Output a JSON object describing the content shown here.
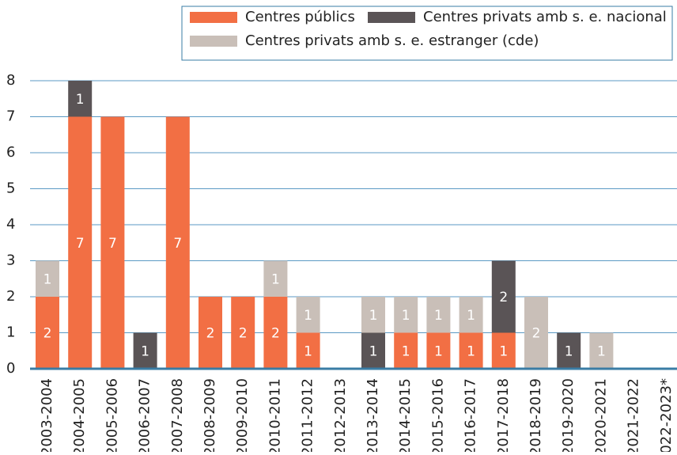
{
  "chart_data": {
    "type": "stacked-bar",
    "categories": [
      "2003-2004",
      "2004-2005",
      "2005-2006",
      "2006-2007",
      "2007-2008",
      "2008-2009",
      "2009-2010",
      "2010-2011",
      "2011-2012",
      "2012-2013",
      "2013-2014",
      "2014-2015",
      "2015-2016",
      "2016-2017",
      "2017-2018",
      "2018-2019",
      "2019-2020",
      "2020-2021",
      "2021-2022",
      "2022-2023*"
    ],
    "series": [
      {
        "name": "Centres públics",
        "color": "#f26f44",
        "values": [
          2,
          7,
          7,
          0,
          7,
          2,
          2,
          2,
          1,
          0,
          0,
          1,
          1,
          1,
          1,
          0,
          0,
          0,
          0,
          0
        ]
      },
      {
        "name": "Centres privats amb s. e. nacional",
        "color": "#5a5456",
        "values": [
          0,
          1,
          0,
          1,
          0,
          0,
          0,
          0,
          0,
          0,
          1,
          0,
          0,
          0,
          2,
          0,
          1,
          0,
          0,
          0
        ]
      },
      {
        "name": "Centres privats amb s. e. estranger (cde)",
        "color": "#c9bfb8",
        "values": [
          1,
          0,
          0,
          0,
          0,
          0,
          0,
          1,
          1,
          0,
          1,
          1,
          1,
          1,
          0,
          2,
          0,
          1,
          0,
          0
        ]
      }
    ],
    "ylim": [
      0,
      8
    ],
    "yticks": [
      0,
      1,
      2,
      3,
      4,
      5,
      6,
      7,
      8
    ],
    "grid": true
  }
}
